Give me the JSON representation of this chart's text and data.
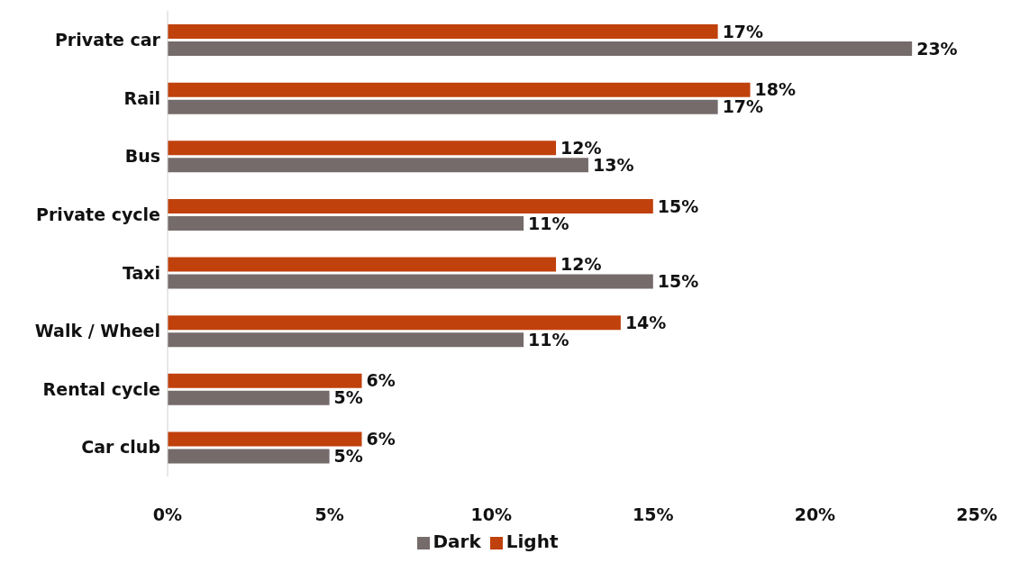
{
  "chart_data": {
    "type": "bar",
    "orientation": "horizontal",
    "categories": [
      "Private car",
      "Rail",
      "Bus",
      "Private cycle",
      "Taxi",
      "Walk / Wheel",
      "Rental cycle",
      "Car club"
    ],
    "series": [
      {
        "name": "Light",
        "color": "#c0410c",
        "values": [
          17,
          18,
          12,
          15,
          12,
          14,
          6,
          6
        ],
        "value_labels": [
          "17%",
          "18%",
          "12%",
          "15%",
          "12%",
          "14%",
          "6%",
          "6%"
        ]
      },
      {
        "name": "Dark",
        "color": "#756b6b",
        "values": [
          23,
          17,
          13,
          11,
          15,
          11,
          5,
          5
        ],
        "value_labels": [
          "23%",
          "17%",
          "13%",
          "11%",
          "15%",
          "11%",
          "5%",
          "5%"
        ]
      }
    ],
    "xlim": [
      0,
      25
    ],
    "xticks": [
      {
        "value": 0,
        "label": "0%"
      },
      {
        "value": 5,
        "label": "5%"
      },
      {
        "value": 10,
        "label": "10%"
      },
      {
        "value": 15,
        "label": "15%"
      },
      {
        "value": 20,
        "label": "20%"
      },
      {
        "value": 25,
        "label": "25%"
      }
    ],
    "grid": false,
    "legend": "bottom"
  }
}
